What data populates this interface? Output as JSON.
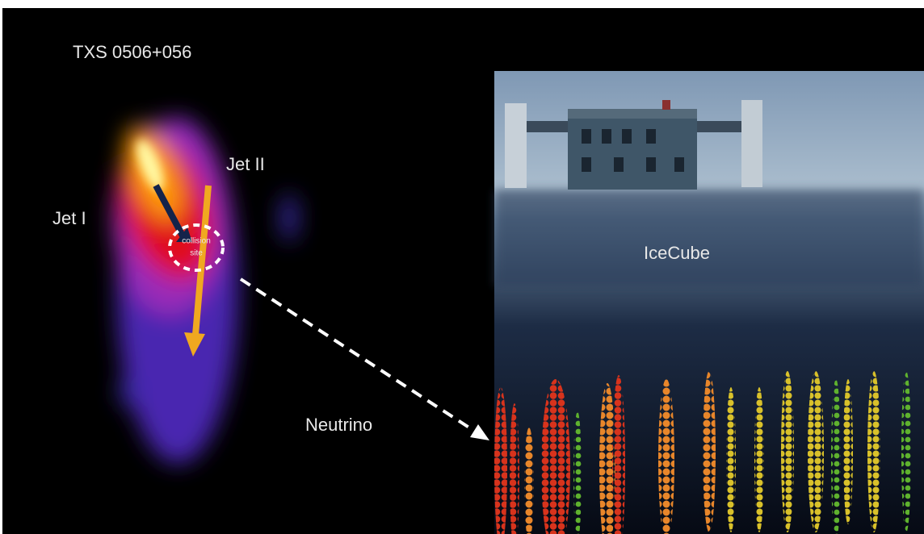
{
  "source": {
    "title": "TXS 0506+056",
    "jet_1": "Jet I",
    "jet_2": "Jet II",
    "collision": [
      "collision",
      "site"
    ]
  },
  "particle": "Neutrino",
  "detector": {
    "label": "IceCube"
  }
}
